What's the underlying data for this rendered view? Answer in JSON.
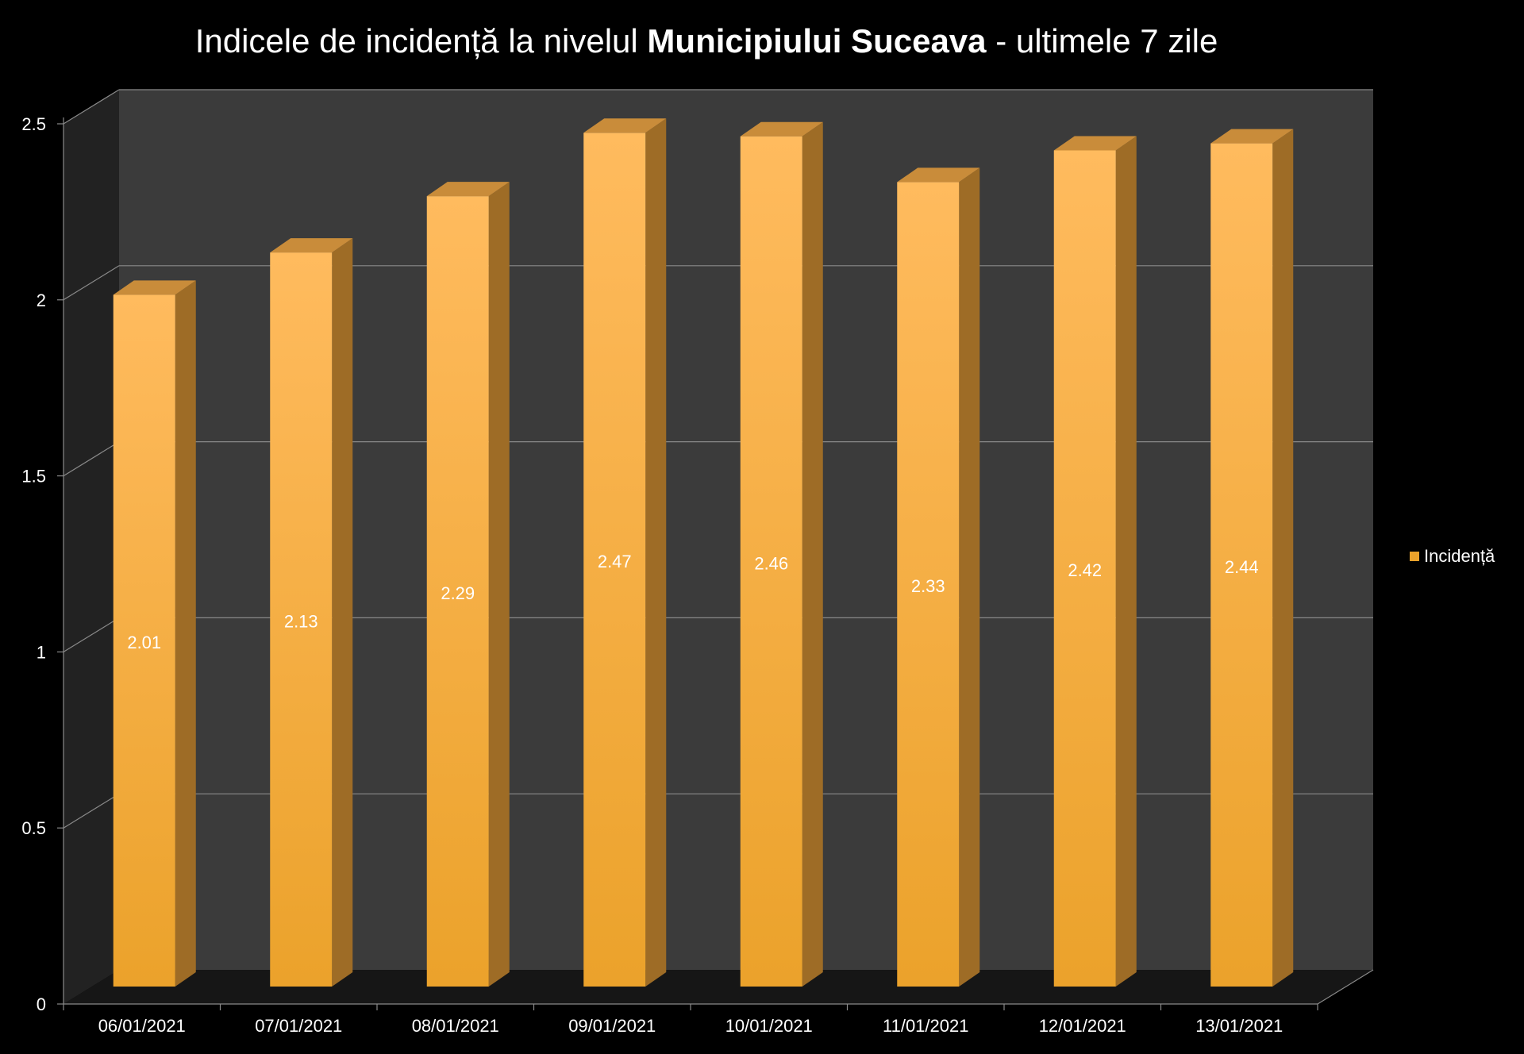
{
  "title": {
    "prefix": "Indicele de incidență la nivelul ",
    "bold": "Municipiului Suceava",
    "suffix": " - ultimele 7 zile"
  },
  "colors": {
    "background": "#000000",
    "wall": "#3b3b3b",
    "side_wall": "#222222",
    "floor": "#161616",
    "bar_front_top": "#ffbb5e",
    "bar_front_bottom": "#eba22b",
    "bar_side": "#9e6c26",
    "bar_top": "#c98c3a",
    "gridline": "#8a8a8a",
    "text": "#ffffff"
  },
  "chart_data": {
    "type": "bar",
    "categories": [
      "06/01/2021",
      "07/01/2021",
      "08/01/2021",
      "09/01/2021",
      "10/01/2021",
      "11/01/2021",
      "12/01/2021",
      "13/01/2021"
    ],
    "series": [
      {
        "name": "Incidență",
        "values": [
          2.01,
          2.13,
          2.29,
          2.47,
          2.46,
          2.33,
          2.42,
          2.44
        ]
      }
    ],
    "yticks": [
      "0",
      "0.5",
      "1",
      "1.5",
      "2",
      "2.5"
    ],
    "ylim": [
      0,
      2.5
    ],
    "data_labels": true,
    "grid": true,
    "legend_position": "right",
    "style": "3d-column"
  }
}
